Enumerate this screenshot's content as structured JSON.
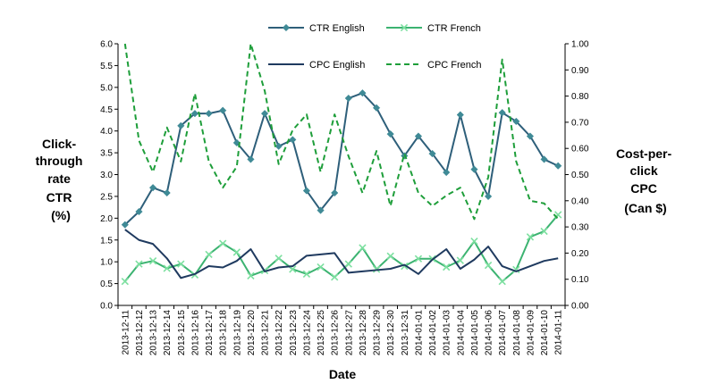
{
  "chart_data": {
    "type": "line",
    "x": [
      "2013-12-11",
      "2013-12-12",
      "2013-12-13",
      "2013-12-14",
      "2013-12-15",
      "2013-12-16",
      "2013-12-17",
      "2013-12-18",
      "2013-12-19",
      "2013-12-20",
      "2013-12-21",
      "2013-12-22",
      "2013-12-23",
      "2013-12-24",
      "2013-12-25",
      "2013-12-26",
      "2013-12-27",
      "2013-12-28",
      "2013-12-29",
      "2013-12-30",
      "2013-12-31",
      "2014-01-01",
      "2014-01-02",
      "2014-01-03",
      "2014-01-04",
      "2014-01-05",
      "2014-01-06",
      "2014-01-07",
      "2014-01-08",
      "2014-01-09",
      "2014-01-10",
      "2014-01-11"
    ],
    "xlabel": "Date",
    "ylabel_left": [
      "Click-",
      "through",
      "rate",
      "CTR",
      "(%)"
    ],
    "ylabel_right": [
      "Cost-per-",
      "click",
      "CPC",
      "(Can $)"
    ],
    "y_left": {
      "range": [
        0,
        6
      ],
      "ticks": [
        "0.0",
        "0.5",
        "1.0",
        "1.5",
        "2.0",
        "2.5",
        "3.0",
        "3.5",
        "4.0",
        "4.5",
        "5.0",
        "5.5",
        "6.0"
      ]
    },
    "y_right": {
      "range": [
        0,
        1
      ],
      "ticks": [
        "0.00",
        "0.10",
        "0.20",
        "0.30",
        "0.40",
        "0.50",
        "0.60",
        "0.70",
        "0.80",
        "0.90",
        "1.00"
      ]
    },
    "series": [
      {
        "name": "CTR English",
        "axis": "left",
        "style": "solid-diamond",
        "color": "#2E5F7A",
        "marker_color": "#3F8A96",
        "values": [
          1.85,
          2.15,
          2.7,
          2.58,
          4.12,
          4.4,
          4.4,
          4.47,
          3.73,
          3.35,
          4.4,
          3.65,
          3.8,
          2.63,
          2.18,
          2.58,
          4.75,
          4.87,
          4.53,
          3.93,
          3.43,
          3.88,
          3.48,
          3.05,
          4.37,
          3.12,
          2.5,
          4.42,
          4.22,
          3.88,
          3.35,
          3.2
        ]
      },
      {
        "name": "CTR French",
        "axis": "left",
        "style": "solid-x",
        "color": "#3CB371",
        "marker_color": "#7DE0A0",
        "values": [
          0.55,
          0.95,
          1.02,
          0.85,
          0.95,
          0.7,
          1.17,
          1.42,
          1.22,
          0.68,
          0.8,
          1.08,
          0.83,
          0.72,
          0.88,
          0.65,
          0.95,
          1.32,
          0.83,
          1.13,
          0.9,
          1.07,
          1.07,
          0.88,
          1.03,
          1.47,
          0.92,
          0.55,
          0.82,
          1.57,
          1.7,
          2.08
        ]
      },
      {
        "name": "CPC English",
        "axis": "right",
        "style": "solid",
        "color": "#1F3A5F",
        "values": [
          0.29,
          0.25,
          0.235,
          0.18,
          0.105,
          0.12,
          0.15,
          0.145,
          0.17,
          0.215,
          0.13,
          0.145,
          0.15,
          0.19,
          0.195,
          0.2,
          0.125,
          0.13,
          0.135,
          0.14,
          0.155,
          0.12,
          0.175,
          0.215,
          0.14,
          0.175,
          0.225,
          0.15,
          0.13,
          0.15,
          0.17,
          0.18
        ]
      },
      {
        "name": "CPC French",
        "axis": "right",
        "style": "dashed",
        "color": "#1E9E3A",
        "values": [
          1.0,
          0.63,
          0.51,
          0.68,
          0.55,
          0.81,
          0.55,
          0.45,
          0.53,
          1.0,
          0.82,
          0.54,
          0.67,
          0.73,
          0.51,
          0.73,
          0.57,
          0.43,
          0.59,
          0.38,
          0.58,
          0.43,
          0.38,
          0.42,
          0.45,
          0.33,
          0.49,
          0.94,
          0.55,
          0.4,
          0.39,
          0.33
        ]
      }
    ],
    "legend": {
      "placement": "top-center",
      "columns": 2
    },
    "grid": false
  }
}
